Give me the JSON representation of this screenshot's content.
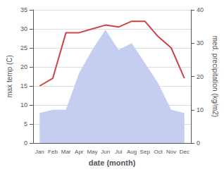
{
  "chart_data": {
    "type": "line",
    "categories": [
      "Jan",
      "Feb",
      "Mar",
      "Apr",
      "May",
      "Jun",
      "Jul",
      "Aug",
      "Sep",
      "Oct",
      "Nov",
      "Dec"
    ],
    "xlabel": "date (month)",
    "ylabel": "max temp (C)",
    "y2label": "med. precipitation (kg/m2)",
    "series": [
      {
        "type": "area",
        "color": "#c5cef0",
        "axis": "y2",
        "values": [
          9,
          10,
          10,
          21,
          28,
          34,
          28,
          30,
          24,
          18,
          10,
          9
        ]
      },
      {
        "type": "line",
        "color": "#cc4444",
        "values": [
          15,
          17,
          29,
          29,
          30,
          31,
          30.5,
          32,
          32,
          28,
          25,
          17
        ]
      }
    ],
    "ylim": [
      0,
      35
    ],
    "yticks": [
      0,
      5,
      10,
      15,
      20,
      25,
      30,
      35
    ],
    "y2lim": [
      0,
      40
    ],
    "y2ticks": [
      0,
      10,
      20,
      30,
      40
    ],
    "grid": true
  }
}
